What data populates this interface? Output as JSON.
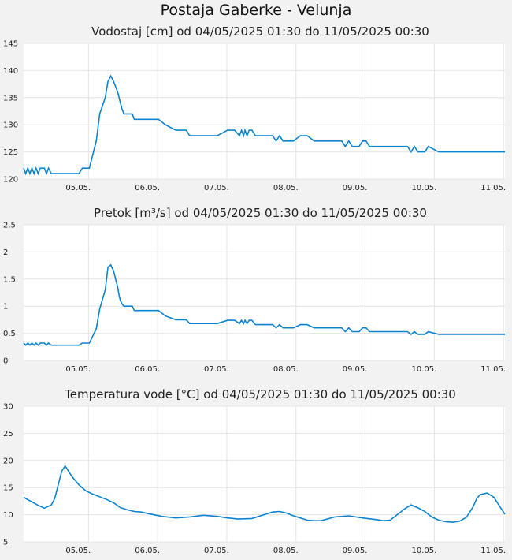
{
  "title": "Postaja Gaberke - Velunja",
  "chart_data": [
    {
      "type": "line",
      "title": "Vodostaj [cm] od 04/05/2025 01:30 do 11/05/2025 00:30",
      "xlabel": "",
      "ylabel": "",
      "ylim": [
        120,
        145
      ],
      "yticks": [
        120,
        125,
        130,
        135,
        140,
        145
      ],
      "xlim": [
        0,
        6.958
      ],
      "xticks": [
        0.9375,
        1.9375,
        2.9375,
        3.9375,
        4.9375,
        5.9375,
        6.9375
      ],
      "xtick_labels": [
        "05.05.",
        "06.05.",
        "07.05.",
        "08.05.",
        "09.05.",
        "10.05.",
        "11.05."
      ],
      "grid": true,
      "series": [
        {
          "color": "#0a84d0",
          "x": [
            0,
            0.03,
            0.06,
            0.09,
            0.12,
            0.15,
            0.18,
            0.21,
            0.24,
            0.27,
            0.3,
            0.33,
            0.36,
            0.4,
            0.43,
            0.46,
            0.5,
            0.54,
            0.58,
            0.62,
            0.66,
            0.7,
            0.75,
            0.8,
            0.85,
            0.9,
            0.95,
            1.05,
            1.1,
            1.18,
            1.22,
            1.26,
            1.3,
            1.33,
            1.36,
            1.38,
            1.4,
            1.42,
            1.45,
            1.48,
            1.51,
            1.54,
            1.57,
            1.6,
            1.63,
            1.66,
            1.7,
            1.75,
            1.8,
            1.87,
            1.95,
            2.05,
            2.2,
            2.35,
            2.4,
            2.5,
            2.6,
            2.8,
            2.95,
            3.05,
            3.12,
            3.15,
            3.18,
            3.2,
            3.23,
            3.26,
            3.3,
            3.35,
            3.4,
            3.5,
            3.6,
            3.65,
            3.7,
            3.75,
            3.8,
            3.9,
            4.0,
            4.1,
            4.2,
            4.3,
            4.5,
            4.6,
            4.65,
            4.7,
            4.75,
            4.85,
            4.9,
            4.95,
            5.0,
            5.05,
            5.2,
            5.4,
            5.5,
            5.55,
            5.6,
            5.65,
            5.7,
            5.75,
            5.8,
            5.85,
            6.0,
            6.3,
            6.6,
            6.958
          ],
          "y": [
            122,
            121,
            122,
            121,
            122,
            121,
            122,
            121,
            122,
            122,
            122,
            121,
            122,
            121,
            121,
            121,
            121,
            121,
            121,
            121,
            121,
            121,
            121,
            121,
            122,
            122,
            122,
            127,
            132,
            135,
            138,
            139,
            138,
            137,
            136,
            135,
            134,
            133,
            132,
            132,
            132,
            132,
            132,
            131,
            131,
            131,
            131,
            131,
            131,
            131,
            131,
            130,
            129,
            129,
            128,
            128,
            128,
            128,
            129,
            129,
            128,
            129,
            128,
            129,
            128,
            129,
            129,
            128,
            128,
            128,
            128,
            127,
            128,
            127,
            127,
            127,
            128,
            128,
            127,
            127,
            127,
            127,
            126,
            127,
            126,
            126,
            127,
            127,
            126,
            126,
            126,
            126,
            126,
            126,
            125,
            126,
            125,
            125,
            125,
            126,
            125,
            125,
            125,
            125
          ]
        }
      ]
    },
    {
      "type": "line",
      "title": "Pretok [m³/s] od 04/05/2025 01:30 do 11/05/2025 00:30",
      "xlabel": "",
      "ylabel": "",
      "ylim": [
        0,
        2.5
      ],
      "yticks": [
        0,
        0.5,
        1,
        1.5,
        2,
        2.5
      ],
      "ytick_labels": [
        "0",
        "0.5",
        "1",
        "1.5",
        "2",
        "2.5"
      ],
      "xlim": [
        0,
        6.958
      ],
      "xticks": [
        0.9375,
        1.9375,
        2.9375,
        3.9375,
        4.9375,
        5.9375,
        6.9375
      ],
      "xtick_labels": [
        "05.05.",
        "06.05.",
        "07.05.",
        "08.05.",
        "09.05.",
        "10.05.",
        "11.05."
      ],
      "grid": true,
      "series": [
        {
          "color": "#0a84d0",
          "x": [
            0,
            0.03,
            0.06,
            0.09,
            0.12,
            0.15,
            0.18,
            0.21,
            0.24,
            0.27,
            0.3,
            0.33,
            0.36,
            0.4,
            0.43,
            0.46,
            0.5,
            0.6,
            0.7,
            0.8,
            0.85,
            0.9,
            0.95,
            1.05,
            1.1,
            1.18,
            1.22,
            1.26,
            1.3,
            1.33,
            1.36,
            1.38,
            1.4,
            1.42,
            1.45,
            1.48,
            1.51,
            1.54,
            1.57,
            1.6,
            1.63,
            1.66,
            1.7,
            1.75,
            1.8,
            1.87,
            1.95,
            2.05,
            2.2,
            2.35,
            2.4,
            2.5,
            2.6,
            2.8,
            2.95,
            3.05,
            3.12,
            3.15,
            3.18,
            3.2,
            3.23,
            3.26,
            3.3,
            3.35,
            3.4,
            3.5,
            3.6,
            3.65,
            3.7,
            3.75,
            3.8,
            3.9,
            4.0,
            4.1,
            4.2,
            4.3,
            4.5,
            4.6,
            4.65,
            4.7,
            4.75,
            4.85,
            4.9,
            4.95,
            5.0,
            5.05,
            5.2,
            5.4,
            5.5,
            5.55,
            5.6,
            5.65,
            5.7,
            5.75,
            5.8,
            5.85,
            6.0,
            6.3,
            6.6,
            6.958
          ],
          "y": [
            0.32,
            0.28,
            0.32,
            0.28,
            0.32,
            0.28,
            0.32,
            0.28,
            0.32,
            0.32,
            0.32,
            0.28,
            0.32,
            0.28,
            0.28,
            0.28,
            0.28,
            0.28,
            0.28,
            0.28,
            0.32,
            0.32,
            0.32,
            0.58,
            0.95,
            1.3,
            1.72,
            1.76,
            1.65,
            1.5,
            1.35,
            1.2,
            1.1,
            1.05,
            1.0,
            1.0,
            1.0,
            1.0,
            1.0,
            0.92,
            0.92,
            0.92,
            0.92,
            0.92,
            0.92,
            0.92,
            0.92,
            0.82,
            0.75,
            0.75,
            0.68,
            0.68,
            0.68,
            0.68,
            0.74,
            0.74,
            0.68,
            0.74,
            0.68,
            0.74,
            0.68,
            0.74,
            0.74,
            0.66,
            0.66,
            0.66,
            0.66,
            0.6,
            0.66,
            0.6,
            0.6,
            0.6,
            0.66,
            0.66,
            0.6,
            0.6,
            0.6,
            0.6,
            0.53,
            0.6,
            0.53,
            0.53,
            0.6,
            0.6,
            0.53,
            0.53,
            0.53,
            0.53,
            0.53,
            0.53,
            0.48,
            0.53,
            0.48,
            0.48,
            0.48,
            0.53,
            0.48,
            0.48,
            0.48,
            0.48
          ]
        }
      ]
    },
    {
      "type": "line",
      "title": "Temperatura vode [°C] od 04/05/2025 01:30 do 11/05/2025 00:30",
      "xlabel": "",
      "ylabel": "",
      "ylim": [
        5,
        30
      ],
      "yticks": [
        5,
        10,
        15,
        20,
        25,
        30
      ],
      "xlim": [
        0,
        6.958
      ],
      "xticks": [
        0.9375,
        1.9375,
        2.9375,
        3.9375,
        4.9375,
        5.9375,
        6.9375
      ],
      "xtick_labels": [
        "05.05.",
        "06.05.",
        "07.05.",
        "08.05.",
        "09.05.",
        "10.05.",
        "11.05."
      ],
      "grid": true,
      "series": [
        {
          "color": "#0a84d0",
          "x": [
            0,
            0.1,
            0.2,
            0.3,
            0.4,
            0.45,
            0.5,
            0.55,
            0.6,
            0.65,
            0.7,
            0.8,
            0.9,
            1.0,
            1.1,
            1.2,
            1.3,
            1.4,
            1.5,
            1.6,
            1.7,
            1.8,
            2.0,
            2.2,
            2.4,
            2.6,
            2.8,
            2.95,
            3.1,
            3.3,
            3.5,
            3.6,
            3.7,
            3.8,
            3.9,
            4.0,
            4.1,
            4.2,
            4.3,
            4.5,
            4.7,
            4.9,
            5.1,
            5.2,
            5.3,
            5.4,
            5.5,
            5.6,
            5.7,
            5.8,
            5.9,
            6.0,
            6.1,
            6.2,
            6.3,
            6.4,
            6.5,
            6.55,
            6.6,
            6.7,
            6.8,
            6.9,
            6.958
          ],
          "y": [
            13.2,
            12.5,
            11.8,
            11.2,
            11.8,
            13,
            15.5,
            18,
            19,
            18,
            17,
            15.5,
            14.4,
            13.8,
            13.3,
            12.8,
            12.2,
            11.3,
            10.9,
            10.6,
            10.5,
            10.2,
            9.7,
            9.4,
            9.6,
            9.9,
            9.7,
            9.4,
            9.2,
            9.3,
            10.1,
            10.5,
            10.6,
            10.3,
            9.8,
            9.4,
            9.0,
            8.9,
            8.9,
            9.6,
            9.8,
            9.4,
            9.1,
            8.9,
            9.0,
            10.0,
            11.0,
            11.8,
            11.3,
            10.6,
            9.6,
            9.0,
            8.7,
            8.6,
            8.8,
            9.5,
            11.5,
            13.0,
            13.7,
            14.0,
            13.2,
            11.2,
            10.1
          ]
        }
      ]
    }
  ]
}
